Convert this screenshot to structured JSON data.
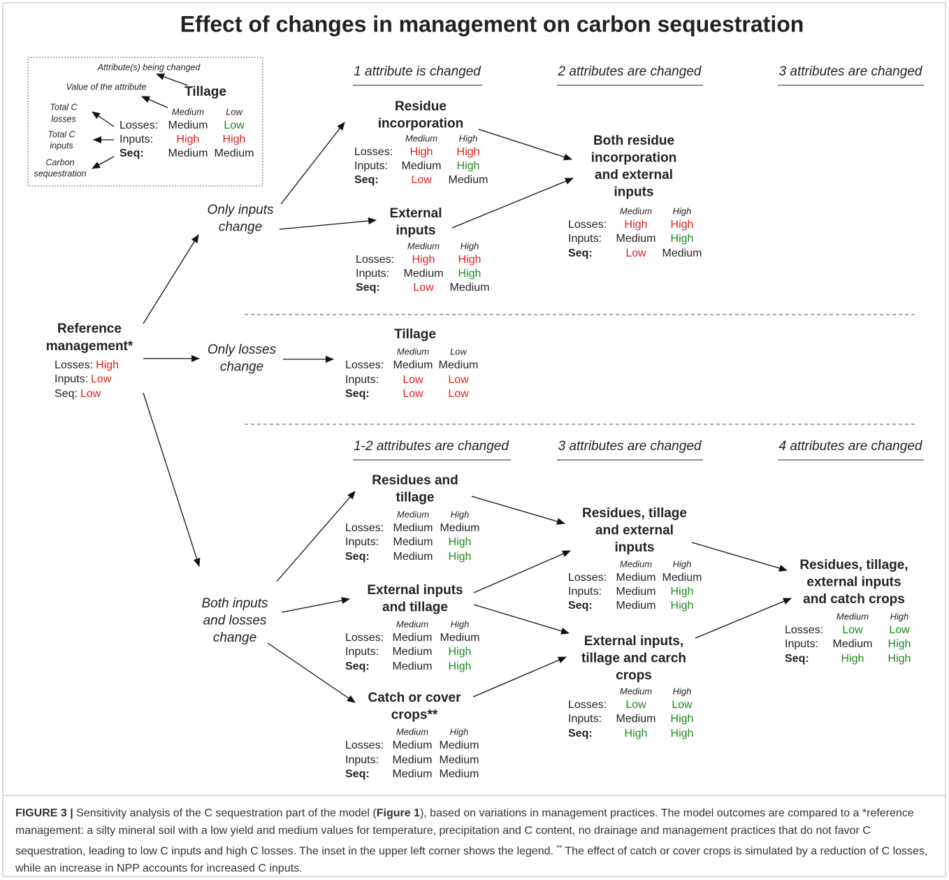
{
  "title": "Effect of changes in management on carbon sequestration",
  "legend": {
    "attribute_label": "Attribute(s) being changed",
    "value_label": "Value of the attribute",
    "side_labels": [
      [
        "Total C",
        "losses"
      ],
      [
        "Total C",
        "inputs"
      ],
      [
        "Carbon",
        "sequestration"
      ]
    ],
    "node": {
      "title": [
        "Tillage"
      ],
      "headers": [
        "Medium",
        "Low"
      ],
      "rows": [
        {
          "label": "Losses:",
          "values": [
            "Medium",
            "Low"
          ],
          "colors": [
            "#222222",
            "#1e8a1e"
          ]
        },
        {
          "label": "Inputs:",
          "values": [
            "High",
            "High"
          ],
          "colors": [
            "#e0201e",
            "#e0201e"
          ]
        },
        {
          "label": "Seq:",
          "values": [
            "Medium",
            "Medium"
          ],
          "colors": [
            "#222222",
            "#222222"
          ]
        }
      ]
    }
  },
  "column_headers_top": [
    "1 attribute is changed",
    "2 attributes are changed",
    "3 attributes are changed"
  ],
  "column_headers_bottom": [
    "1-2 attributes are changed",
    "3 attributes are changed",
    "4 attributes are changed"
  ],
  "reference": {
    "title": [
      "Reference",
      "management*"
    ],
    "rows": [
      {
        "label": "Losses:",
        "value": "High",
        "color": "#e0201e"
      },
      {
        "label": "Inputs:",
        "value": "Low",
        "color": "#e0201e"
      },
      {
        "label": "Seq:",
        "value": "Low",
        "color": "#e0201e"
      }
    ]
  },
  "branches": [
    [
      "Only inputs",
      "change"
    ],
    [
      "Only losses",
      "change"
    ],
    [
      "Both inputs",
      "and losses",
      "change"
    ]
  ],
  "nodes": [
    {
      "title": [
        "Residue",
        "incorporation"
      ],
      "headers": [
        "Medium",
        "High"
      ],
      "rows": [
        {
          "label": "Losses:",
          "values": [
            "High",
            "High"
          ],
          "colors": [
            "#e0201e",
            "#e0201e"
          ]
        },
        {
          "label": "Inputs:",
          "values": [
            "Medium",
            "High"
          ],
          "colors": [
            "#222222",
            "#1e8a1e"
          ]
        },
        {
          "label": "Seq:",
          "values": [
            "Low",
            "Medium"
          ],
          "colors": [
            "#e0201e",
            "#222222"
          ]
        }
      ]
    },
    {
      "title": [
        "External",
        "inputs"
      ],
      "headers": [
        "Medium",
        "High"
      ],
      "rows": [
        {
          "label": "Losses:",
          "values": [
            "High",
            "High"
          ],
          "colors": [
            "#e0201e",
            "#e0201e"
          ]
        },
        {
          "label": "Inputs:",
          "values": [
            "Medium",
            "High"
          ],
          "colors": [
            "#222222",
            "#1e8a1e"
          ]
        },
        {
          "label": "Seq:",
          "values": [
            "Low",
            "Medium"
          ],
          "colors": [
            "#e0201e",
            "#222222"
          ]
        }
      ]
    },
    {
      "title": [
        "Both residue",
        "incorporation",
        "and external",
        "inputs"
      ],
      "headers": [
        "Medium",
        "High"
      ],
      "rows": [
        {
          "label": "Losses:",
          "values": [
            "High",
            "High"
          ],
          "colors": [
            "#e0201e",
            "#e0201e"
          ]
        },
        {
          "label": "Inputs:",
          "values": [
            "Medium",
            "High"
          ],
          "colors": [
            "#222222",
            "#1e8a1e"
          ]
        },
        {
          "label": "Seq:",
          "values": [
            "Low",
            "Medium"
          ],
          "colors": [
            "#e0201e",
            "#222222"
          ]
        }
      ]
    },
    {
      "title": [
        "Tillage"
      ],
      "headers": [
        "Medium",
        "Low"
      ],
      "rows": [
        {
          "label": "Losses:",
          "values": [
            "Medium",
            "Medium"
          ],
          "colors": [
            "#222222",
            "#222222"
          ]
        },
        {
          "label": "Inputs:",
          "values": [
            "Low",
            "Low"
          ],
          "colors": [
            "#e0201e",
            "#e0201e"
          ]
        },
        {
          "label": "Seq:",
          "values": [
            "Low",
            "Low"
          ],
          "colors": [
            "#e0201e",
            "#e0201e"
          ]
        }
      ]
    },
    {
      "title": [
        "Residues and",
        "tillage"
      ],
      "headers": [
        "Medium",
        "High"
      ],
      "rows": [
        {
          "label": "Losses:",
          "values": [
            "Medium",
            "Medium"
          ],
          "colors": [
            "#222222",
            "#222222"
          ]
        },
        {
          "label": "Inputs:",
          "values": [
            "Medium",
            "High"
          ],
          "colors": [
            "#222222",
            "#1e8a1e"
          ]
        },
        {
          "label": "Seq:",
          "values": [
            "Medium",
            "High"
          ],
          "colors": [
            "#222222",
            "#1e8a1e"
          ]
        }
      ]
    },
    {
      "title": [
        "External inputs",
        "and tillage"
      ],
      "headers": [
        "Medium",
        "High"
      ],
      "rows": [
        {
          "label": "Losses:",
          "values": [
            "Medium",
            "Medium"
          ],
          "colors": [
            "#222222",
            "#222222"
          ]
        },
        {
          "label": "Inputs:",
          "values": [
            "Medium",
            "High"
          ],
          "colors": [
            "#222222",
            "#1e8a1e"
          ]
        },
        {
          "label": "Seq:",
          "values": [
            "Medium",
            "High"
          ],
          "colors": [
            "#222222",
            "#1e8a1e"
          ]
        }
      ]
    },
    {
      "title": [
        "Catch or cover",
        "crops**"
      ],
      "headers": [
        "Medium",
        "High"
      ],
      "rows": [
        {
          "label": "Losses:",
          "values": [
            "Medium",
            "Medium"
          ],
          "colors": [
            "#222222",
            "#222222"
          ]
        },
        {
          "label": "Inputs:",
          "values": [
            "Medium",
            "Medium"
          ],
          "colors": [
            "#222222",
            "#222222"
          ]
        },
        {
          "label": "Seq:",
          "values": [
            "Medium",
            "Medium"
          ],
          "colors": [
            "#222222",
            "#222222"
          ]
        }
      ]
    },
    {
      "title": [
        "Residues, tillage",
        "and external",
        "inputs"
      ],
      "headers": [
        "Medium",
        "High"
      ],
      "rows": [
        {
          "label": "Losses:",
          "values": [
            "Medium",
            "Medium"
          ],
          "colors": [
            "#222222",
            "#222222"
          ]
        },
        {
          "label": "Inputs:",
          "values": [
            "Medium",
            "High"
          ],
          "colors": [
            "#222222",
            "#1e8a1e"
          ]
        },
        {
          "label": "Seq:",
          "values": [
            "Medium",
            "High"
          ],
          "colors": [
            "#222222",
            "#1e8a1e"
          ]
        }
      ]
    },
    {
      "title": [
        "External inputs,",
        "tillage and carch",
        "crops"
      ],
      "headers": [
        "Medium",
        "High"
      ],
      "rows": [
        {
          "label": "Losses:",
          "values": [
            "Low",
            "Low"
          ],
          "colors": [
            "#1e8a1e",
            "#1e8a1e"
          ]
        },
        {
          "label": "Inputs:",
          "values": [
            "Medium",
            "High"
          ],
          "colors": [
            "#222222",
            "#1e8a1e"
          ]
        },
        {
          "label": "Seq:",
          "values": [
            "High",
            "High"
          ],
          "colors": [
            "#1e8a1e",
            "#1e8a1e"
          ]
        }
      ]
    },
    {
      "title": [
        "Residues, tillage,",
        "external inputs",
        "and catch crops"
      ],
      "headers": [
        "Medium",
        "High"
      ],
      "rows": [
        {
          "label": "Losses:",
          "values": [
            "Low",
            "Low"
          ],
          "colors": [
            "#1e8a1e",
            "#1e8a1e"
          ]
        },
        {
          "label": "Inputs:",
          "values": [
            "Medium",
            "High"
          ],
          "colors": [
            "#222222",
            "#1e8a1e"
          ]
        },
        {
          "label": "Seq:",
          "values": [
            "High",
            "High"
          ],
          "colors": [
            "#1e8a1e",
            "#1e8a1e"
          ]
        }
      ]
    }
  ],
  "caption": {
    "label": "FIGURE 3 |",
    "text1": " Sensitivity analysis of the C sequestration part of the model (",
    "ref": "Figure 1",
    "text2": "), based on variations in management practices. The model outcomes are compared to a *reference management: a silty mineral soil with a low yield and medium values for temperature, precipitation and C content, no drainage and management practices that do not favor C sequestration, leading to low C inputs and high C losses. The inset in the upper left corner shows the legend. ",
    "note_mark": "**",
    "text3": " The effect of catch or cover crops is simulated by a reduction of C losses, while an increase in NPP accounts for increased C inputs."
  }
}
